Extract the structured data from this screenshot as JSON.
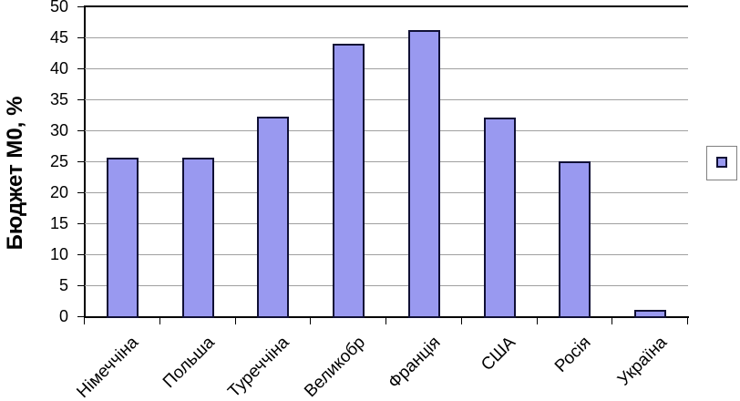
{
  "chart_data": {
    "type": "bar",
    "title": "",
    "xlabel": "",
    "ylabel": "Бюджет М0, %",
    "categories": [
      "Німеччіна",
      "Польша",
      "Туреччіна",
      "Великобр",
      "Франція",
      "США",
      "Росія",
      "Україна"
    ],
    "values": [
      25.6,
      25.6,
      32.2,
      44,
      46.2,
      32.1,
      25,
      1
    ],
    "ylim": [
      0,
      50
    ],
    "ytick_step": 5,
    "ytick_labels": [
      "0",
      "5",
      "10",
      "15",
      "20",
      "25",
      "30",
      "35",
      "40",
      "45",
      "50"
    ],
    "grid": true,
    "legend": {
      "position": "right",
      "entries": [
        {
          "label": "",
          "swatch": "series-1"
        }
      ]
    },
    "colors": {
      "bar_fill": "#9999F0",
      "bar_border": "#101035",
      "gridline": "#A0A0A0",
      "axis": "#000000",
      "top_line": "#000000",
      "legend_border": "#808080",
      "background": "#FFFFFF"
    }
  }
}
